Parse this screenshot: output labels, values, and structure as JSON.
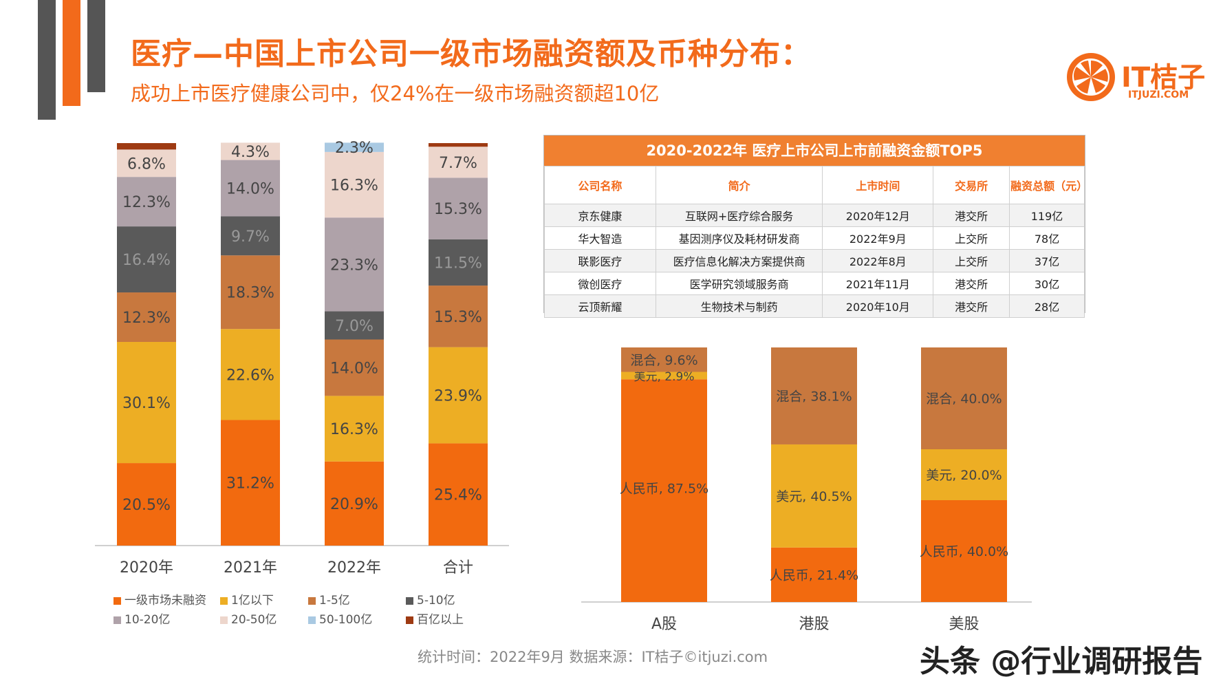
{
  "header": {
    "title": "医疗—中国上市公司一级市场融资额及币种分布：",
    "subtitle": "成功上市医疗健康公司中，仅24%在一级市场融资额超10亿"
  },
  "logo": {
    "name": "IT桔子",
    "url_text": "ITJUZI.COM"
  },
  "colors": {
    "accent": "#F26A1B",
    "dark_bar": "#555555",
    "table_header": "#F08030"
  },
  "chart_data": [
    {
      "type": "bar",
      "stacked": true,
      "categories": [
        "2020年",
        "2021年",
        "2022年",
        "合计"
      ],
      "series": [
        {
          "name": "一级市场未融资",
          "color": "#F26A0F",
          "values": [
            20.5,
            31.2,
            20.9,
            25.4
          ]
        },
        {
          "name": "1亿以下",
          "color": "#EDAE24",
          "values": [
            30.1,
            22.6,
            16.3,
            23.9
          ]
        },
        {
          "name": "1-5亿",
          "color": "#C8783E",
          "values": [
            12.3,
            18.3,
            14.0,
            15.3
          ]
        },
        {
          "name": "5-10亿",
          "color": "#5A5A5A",
          "values": [
            16.4,
            9.7,
            7.0,
            11.5
          ]
        },
        {
          "name": "10-20亿",
          "color": "#AFA2A9",
          "values": [
            12.3,
            14.0,
            23.3,
            15.3
          ]
        },
        {
          "name": "20-50亿",
          "color": "#EDD6CC",
          "values": [
            6.8,
            4.3,
            16.3,
            7.7
          ]
        },
        {
          "name": "50-100亿",
          "color": "#A9C9E2",
          "values": [
            0,
            0,
            2.3,
            0
          ]
        },
        {
          "name": "百亿以上",
          "color": "#9E3A12",
          "values": [
            1.6,
            0,
            0,
            0.9
          ]
        }
      ],
      "data_labels": {
        "2020年": [
          "20.5%",
          "30.1%",
          "12.3%",
          "16.4%",
          "12.3%",
          "6.8%",
          "",
          ""
        ],
        "2021年": [
          "31.2%",
          "22.6%",
          "18.3%",
          "9.7%",
          "14.0%",
          "4.3%",
          "",
          ""
        ],
        "2022年": [
          "20.9%",
          "16.3%",
          "14.0%",
          "7.0%",
          "23.3%",
          "16.3%",
          "2.3%",
          ""
        ],
        "合计": [
          "25.4%",
          "23.9%",
          "15.3%",
          "11.5%",
          "15.3%",
          "7.7%",
          "",
          ""
        ]
      },
      "ylim": [
        0,
        100
      ],
      "legend_position": "bottom"
    },
    {
      "type": "bar",
      "stacked": true,
      "categories": [
        "A股",
        "港股",
        "美股"
      ],
      "series": [
        {
          "name": "人民币",
          "color": "#F26A0F",
          "values": [
            87.5,
            21.4,
            40.0
          ],
          "labels": [
            "人民币, 87.5%",
            "人民币, 21.4%",
            "人民币, 40.0%"
          ]
        },
        {
          "name": "美元",
          "color": "#EDAE24",
          "values": [
            2.9,
            40.5,
            20.0
          ],
          "labels": [
            "美元, 2.9%",
            "美元, 40.5%",
            "美元, 20.0%"
          ]
        },
        {
          "name": "混合",
          "color": "#C8783E",
          "values": [
            9.6,
            38.1,
            40.0
          ],
          "labels": [
            "混合, 9.6%",
            "混合, 38.1%",
            "混合, 40.0%"
          ]
        }
      ],
      "ylim": [
        0,
        100
      ]
    }
  ],
  "table": {
    "title": "2020-2022年 医疗上市公司上市前融资金额TOP5",
    "headers": [
      "公司名称",
      "简介",
      "上市时间",
      "交易所",
      "融资总额（元）"
    ],
    "rows": [
      [
        "京东健康",
        "互联网+医疗综合服务",
        "2020年12月",
        "港交所",
        "119亿"
      ],
      [
        "华大智造",
        "基因测序仪及耗材研发商",
        "2022年9月",
        "上交所",
        "78亿"
      ],
      [
        "联影医疗",
        "医疗信息化解决方案提供商",
        "2022年8月",
        "上交所",
        "37亿"
      ],
      [
        "微创医疗",
        "医学研究领域服务商",
        "2021年11月",
        "港交所",
        "30亿"
      ],
      [
        "云顶新耀",
        "生物技术与制药",
        "2020年10月",
        "港交所",
        "28亿"
      ]
    ]
  },
  "footer": {
    "text": "统计时间：2022年9月  数据来源：IT桔子©itjuzi.com"
  },
  "watermark": {
    "text": "头条 @行业调研报告"
  }
}
